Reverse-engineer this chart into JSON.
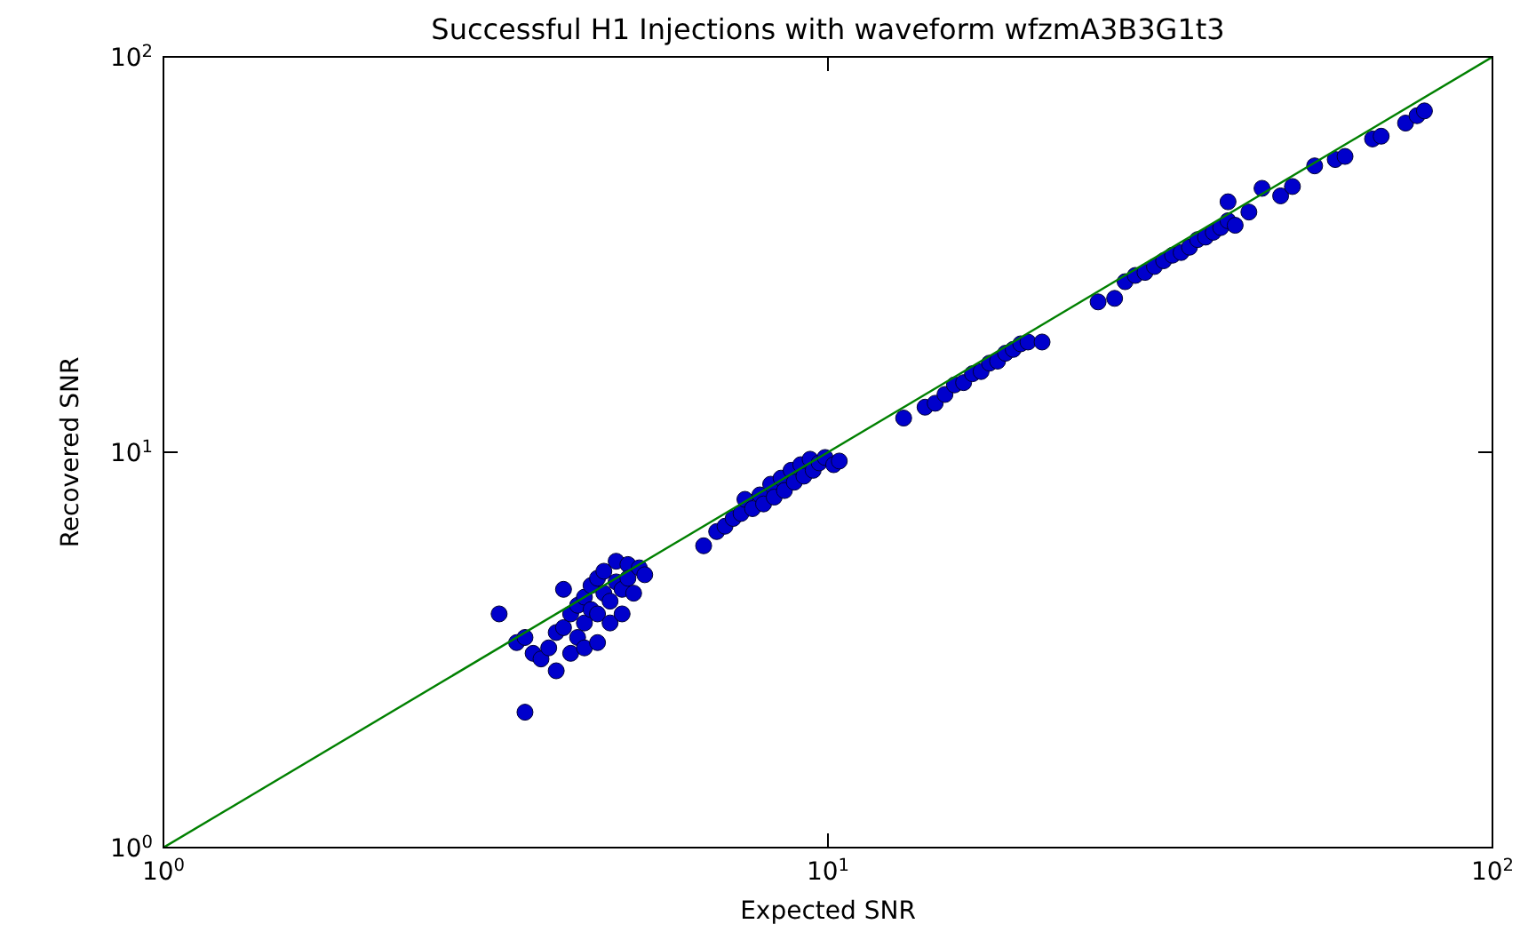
{
  "chart_data": {
    "type": "scatter",
    "title": "Successful H1 Injections with waveform wfzmA3B3G1t3",
    "xlabel": "Expected SNR",
    "ylabel": "Recovered SNR",
    "log": "xy",
    "grid": false,
    "xlim": [
      1,
      100
    ],
    "ylim": [
      1,
      100
    ],
    "xticks": [
      {
        "value": 1,
        "label": "10$^{0}$"
      },
      {
        "value": 10,
        "label": "10$^{1}$"
      },
      {
        "value": 100,
        "label": "10$^{2}$"
      }
    ],
    "yticks": [
      {
        "value": 1,
        "label": "10$^{0}$"
      },
      {
        "value": 10,
        "label": "10$^{1}$"
      },
      {
        "value": 100,
        "label": "10$^{2}$"
      }
    ],
    "series": [
      {
        "marker": "circle",
        "color": "#0000cc",
        "x": [
          3.2,
          3.5,
          3.4,
          3.5,
          3.6,
          3.7,
          3.8,
          3.9,
          3.9,
          4.0,
          4.0,
          4.1,
          4.1,
          4.2,
          4.2,
          4.3,
          4.3,
          4.3,
          4.4,
          4.4,
          4.5,
          4.5,
          4.5,
          4.6,
          4.6,
          4.7,
          4.7,
          4.8,
          4.8,
          4.9,
          4.9,
          5.0,
          5.0,
          5.1,
          5.2,
          5.3,
          6.5,
          6.8,
          7.0,
          7.2,
          7.4,
          7.5,
          7.7,
          7.9,
          8.0,
          8.2,
          8.3,
          8.5,
          8.6,
          8.8,
          8.9,
          9.1,
          9.2,
          9.4,
          9.5,
          9.7,
          9.9,
          10.2,
          10.4,
          13.0,
          14.0,
          14.5,
          15.0,
          15.5,
          16.0,
          16.5,
          17.0,
          17.5,
          18.0,
          18.5,
          19.0,
          19.5,
          20.0,
          21.0,
          25.5,
          27.0,
          28.0,
          29.0,
          30.0,
          31.0,
          32.0,
          33.0,
          34.0,
          35.0,
          36.0,
          37.0,
          38.0,
          39.0,
          40.0,
          41.0,
          40.0,
          43.0,
          45.0,
          48.0,
          50.0,
          54.0,
          58.0,
          60.0,
          66.0,
          68.0,
          74.0,
          77.0,
          79.0
        ],
        "values": [
          3.9,
          2.2,
          3.3,
          3.4,
          3.1,
          3.0,
          3.2,
          2.8,
          3.5,
          3.6,
          4.5,
          3.9,
          3.1,
          4.1,
          3.4,
          4.3,
          3.7,
          3.2,
          4.6,
          4.0,
          4.8,
          3.9,
          3.3,
          4.4,
          5.0,
          4.2,
          3.7,
          5.3,
          4.7,
          4.5,
          3.9,
          5.2,
          4.8,
          4.4,
          5.1,
          4.9,
          5.8,
          6.3,
          6.5,
          6.8,
          7.0,
          7.6,
          7.2,
          7.8,
          7.4,
          8.3,
          7.7,
          8.6,
          8.0,
          9.0,
          8.4,
          9.3,
          8.7,
          9.6,
          9.0,
          9.4,
          9.7,
          9.3,
          9.5,
          12.2,
          13.0,
          13.3,
          14.0,
          14.8,
          15.0,
          15.8,
          16.0,
          16.8,
          17.0,
          17.8,
          18.2,
          18.8,
          19.0,
          19.0,
          24.0,
          24.5,
          27.0,
          28.0,
          28.5,
          29.5,
          30.5,
          31.5,
          32.0,
          33.0,
          34.5,
          35.0,
          36.0,
          37.0,
          38.5,
          37.5,
          43.0,
          40.5,
          46.5,
          44.5,
          47.0,
          53.0,
          55.0,
          56.0,
          62.0,
          63.0,
          68.0,
          71.0,
          73.0
        ]
      },
      {
        "type": "line",
        "color": "#008000",
        "x": [
          1,
          100
        ],
        "values": [
          1,
          100
        ]
      }
    ]
  }
}
